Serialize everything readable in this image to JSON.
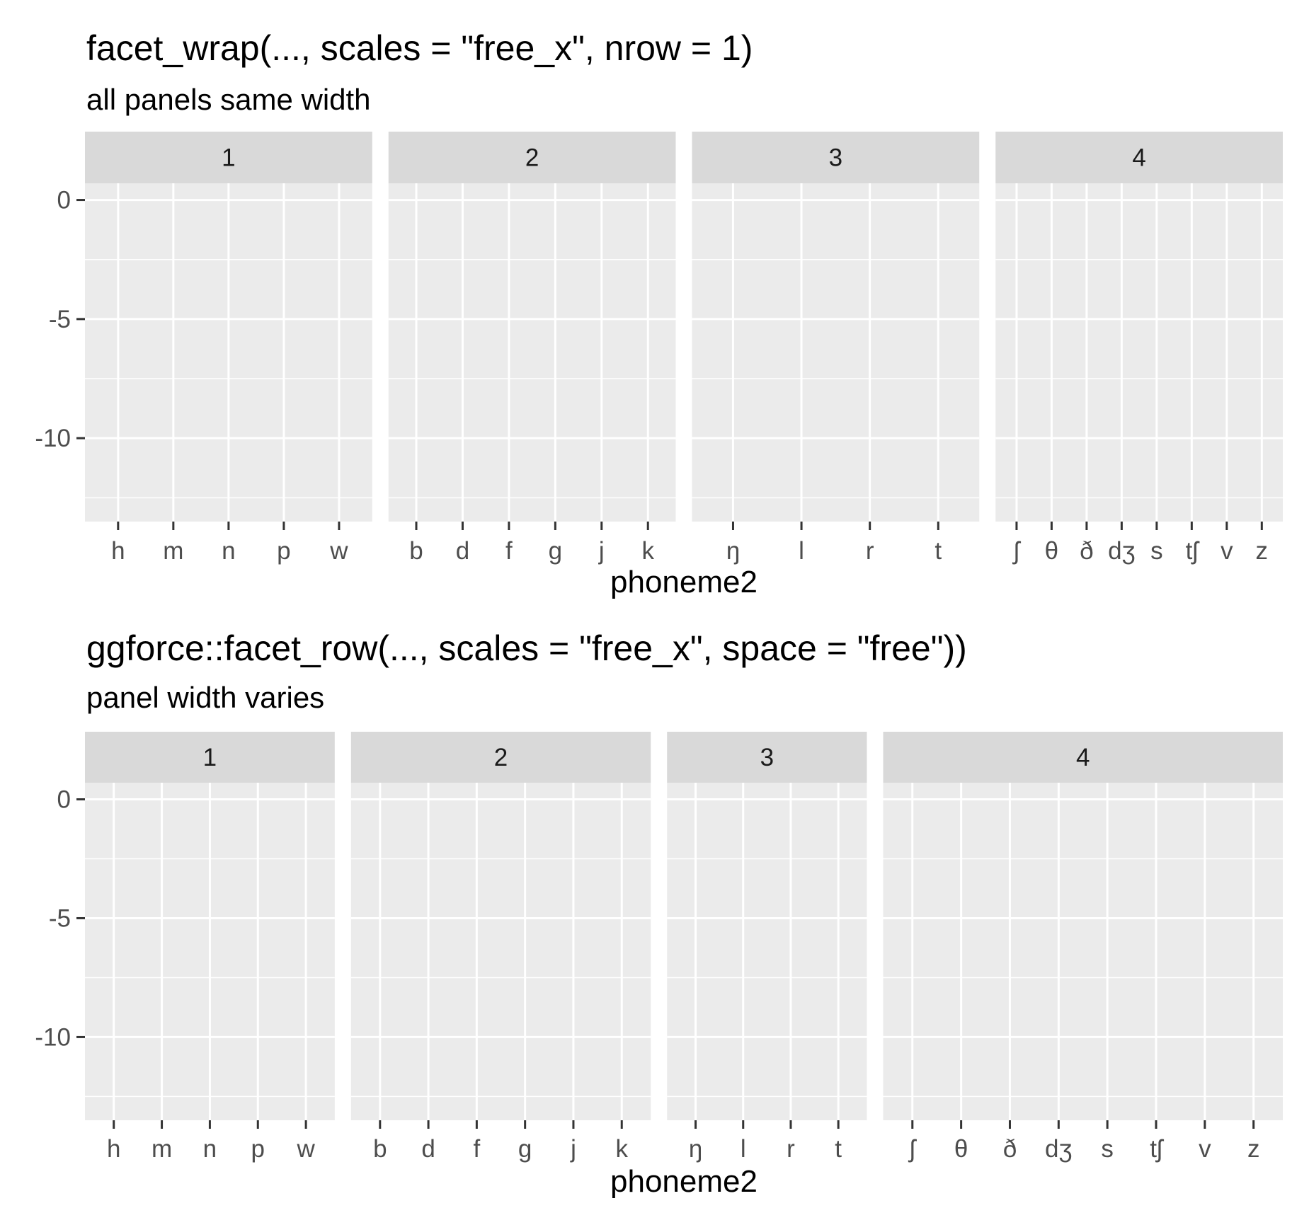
{
  "chart_data": [
    {
      "type": "scatter",
      "title": "facet_wrap(...,  scales = \"free_x\", nrow = 1)",
      "subtitle": "all panels same width",
      "xlabel": "phoneme2",
      "ylabel": "",
      "yticks": [
        0,
        -5,
        -10
      ],
      "ylim": [
        -13.5,
        0.7
      ],
      "grid": true,
      "panel_width": "equal",
      "facets": [
        {
          "label": "1",
          "categories": [
            "h",
            "m",
            "n",
            "p",
            "w"
          ]
        },
        {
          "label": "2",
          "categories": [
            "b",
            "d",
            "f",
            "g",
            "j",
            "k"
          ]
        },
        {
          "label": "3",
          "categories": [
            "ŋ",
            "l",
            "r",
            "t"
          ]
        },
        {
          "label": "4",
          "categories": [
            "ʃ",
            "θ",
            "ð",
            "dʒ",
            "s",
            "tʃ",
            "v",
            "z"
          ]
        }
      ]
    },
    {
      "type": "scatter",
      "title": "ggforce::facet_row(..., scales = \"free_x\", space = \"free\"))",
      "subtitle": "panel width varies",
      "xlabel": "phoneme2",
      "ylabel": "",
      "yticks": [
        0,
        -5,
        -10
      ],
      "ylim": [
        -13.5,
        0.7
      ],
      "grid": true,
      "panel_width": "proportional",
      "facets": [
        {
          "label": "1",
          "categories": [
            "h",
            "m",
            "n",
            "p",
            "w"
          ]
        },
        {
          "label": "2",
          "categories": [
            "b",
            "d",
            "f",
            "g",
            "j",
            "k"
          ]
        },
        {
          "label": "3",
          "categories": [
            "ŋ",
            "l",
            "r",
            "t"
          ]
        },
        {
          "label": "4",
          "categories": [
            "ʃ",
            "θ",
            "ð",
            "dʒ",
            "s",
            "tʃ",
            "v",
            "z"
          ]
        }
      ]
    }
  ],
  "colors": {
    "panel_background": "#EBEBEB",
    "strip_background": "#D9D9D9",
    "grid": "#FFFFFF",
    "tick": "#333333",
    "tick_label": "#4D4D4D"
  }
}
